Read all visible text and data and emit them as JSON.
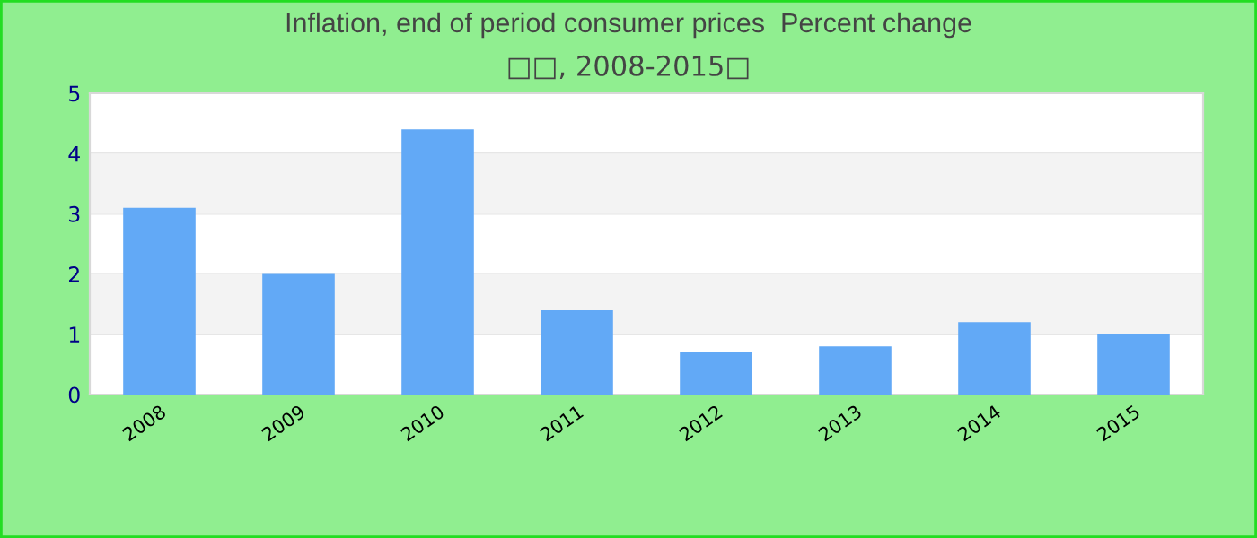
{
  "chart_data": {
    "type": "bar",
    "title": "Inflation, end of period consumer prices  Percent change",
    "subtitle": "□□, 2008-2015□",
    "categories": [
      "2008",
      "2009",
      "2010",
      "2011",
      "2012",
      "2013",
      "2014",
      "2015"
    ],
    "values": [
      3.1,
      2.0,
      4.4,
      1.4,
      0.7,
      0.8,
      1.2,
      1.0
    ],
    "color": "#62a9f6",
    "ylim": [
      0,
      5
    ],
    "yticks": [
      0,
      1,
      2,
      3,
      4,
      5
    ],
    "grid": "y",
    "legend": false
  }
}
